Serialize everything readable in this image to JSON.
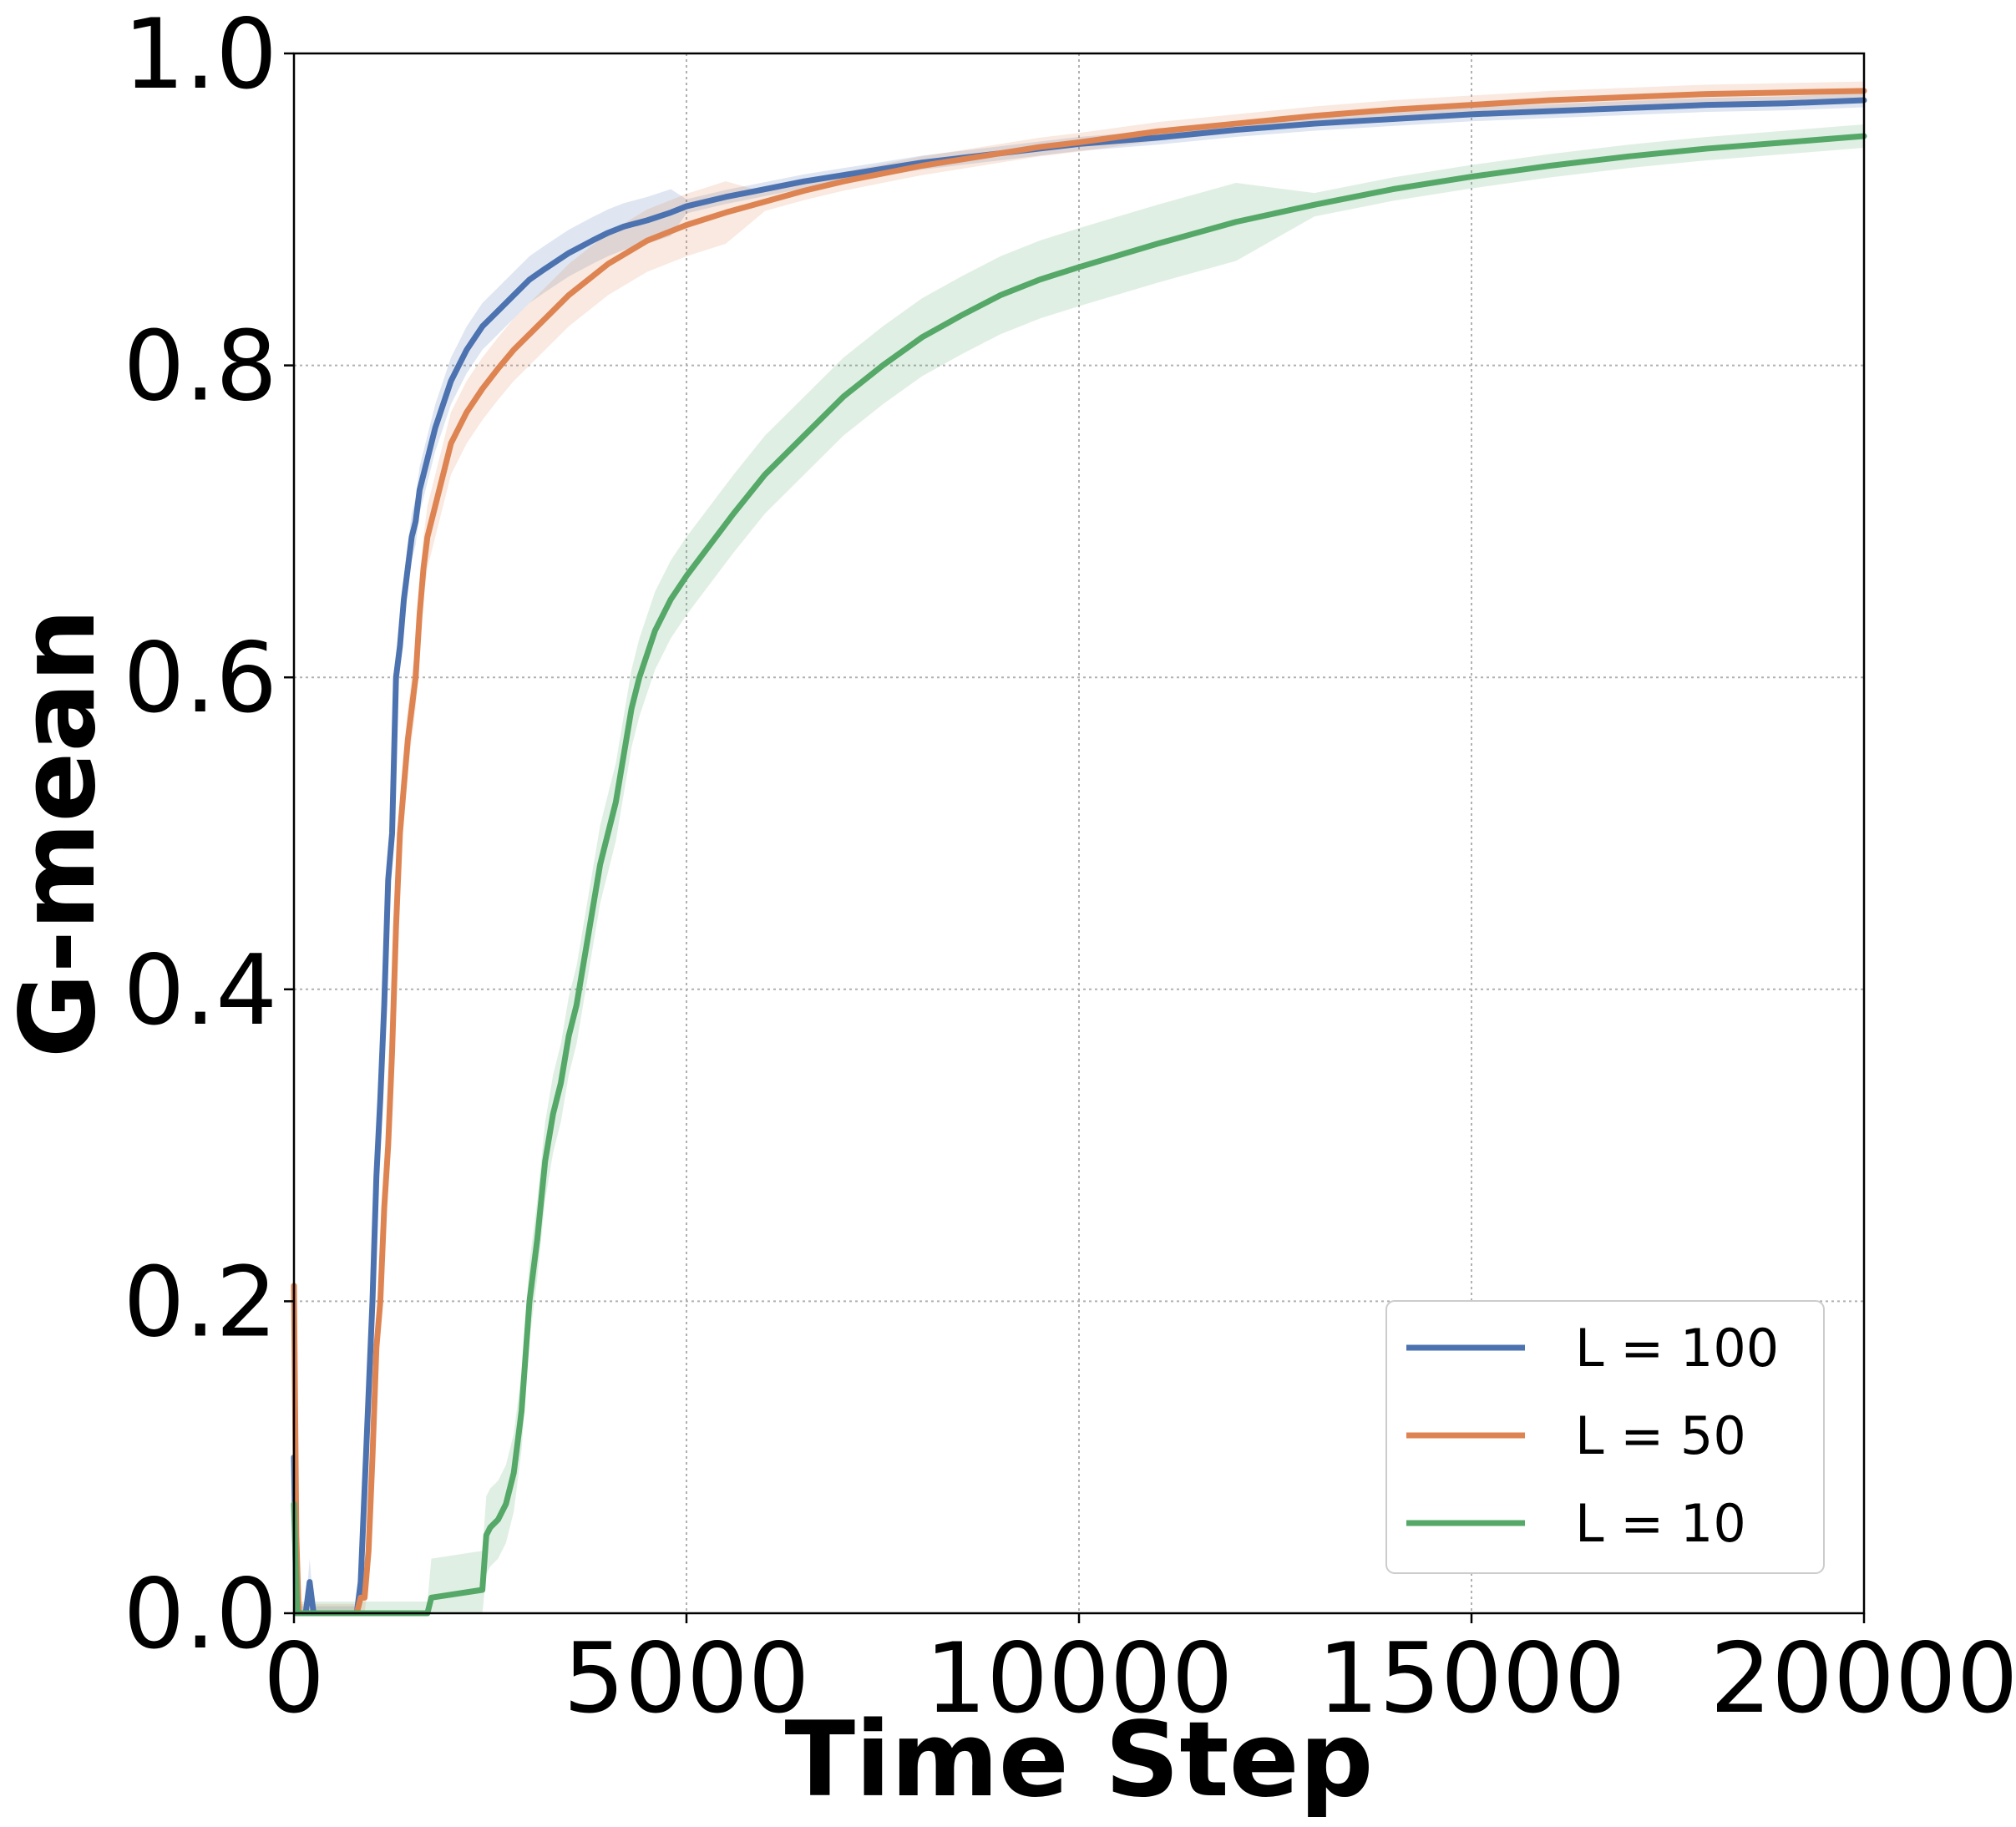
{
  "chart_data": {
    "type": "line",
    "title": "",
    "xlabel": "Time Step",
    "ylabel": "G-mean",
    "xlim": [
      0,
      20000
    ],
    "ylim": [
      0.0,
      1.0
    ],
    "xticks": [
      0,
      5000,
      10000,
      15000,
      20000
    ],
    "xtick_labels": [
      "0",
      "5000",
      "10000",
      "15000",
      "20000"
    ],
    "yticks": [
      0.0,
      0.2,
      0.4,
      0.6,
      0.8,
      1.0
    ],
    "ytick_labels": [
      "0.0",
      "0.2",
      "0.4",
      "0.6",
      "0.8",
      "1.0"
    ],
    "grid": true,
    "legend_position": "lower-right",
    "series": [
      {
        "name": "L = 100",
        "color": "#4c72b0",
        "band": 0.015,
        "x": [
          0,
          30,
          50,
          150,
          200,
          250,
          300,
          800,
          850,
          900,
          950,
          1000,
          1050,
          1100,
          1150,
          1200,
          1250,
          1300,
          1350,
          1400,
          1450,
          1500,
          1550,
          1600,
          1650,
          1700,
          1800,
          1900,
          2000,
          2100,
          2200,
          2400,
          2600,
          2800,
          3000,
          3200,
          3500,
          3800,
          4000,
          4200,
          4500,
          4800,
          5000,
          5500,
          6000,
          6500,
          7000,
          7500,
          8000,
          8500,
          9000,
          9500,
          10000,
          11000,
          12000,
          13000,
          14000,
          15000,
          16000,
          17000,
          18000,
          19000,
          20000
        ],
        "y": [
          0.1,
          0.0,
          0.0,
          0.0,
          0.02,
          0.0,
          0.0,
          0.0,
          0.02,
          0.08,
          0.14,
          0.2,
          0.28,
          0.33,
          0.39,
          0.47,
          0.5,
          0.6,
          0.62,
          0.65,
          0.67,
          0.69,
          0.7,
          0.72,
          0.73,
          0.74,
          0.76,
          0.775,
          0.79,
          0.8,
          0.81,
          0.825,
          0.835,
          0.845,
          0.855,
          0.862,
          0.872,
          0.88,
          0.885,
          0.889,
          0.893,
          0.898,
          0.902,
          0.908,
          0.913,
          0.918,
          0.922,
          0.926,
          0.93,
          0.933,
          0.936,
          0.939,
          0.942,
          0.946,
          0.951,
          0.955,
          0.958,
          0.961,
          0.963,
          0.965,
          0.967,
          0.968,
          0.97
        ]
      },
      {
        "name": "L = 50",
        "color": "#dd8452",
        "band": 0.02,
        "x": [
          0,
          30,
          60,
          800,
          850,
          900,
          950,
          1000,
          1050,
          1100,
          1150,
          1200,
          1250,
          1300,
          1350,
          1400,
          1450,
          1500,
          1550,
          1600,
          1650,
          1700,
          1800,
          1900,
          2000,
          2200,
          2400,
          2600,
          2800,
          3000,
          3200,
          3500,
          3800,
          4000,
          4500,
          5000,
          5500,
          6000,
          6500,
          7000,
          7500,
          8000,
          8500,
          9000,
          9500,
          10000,
          11000,
          12000,
          13000,
          14000,
          15000,
          16000,
          17000,
          18000,
          19000,
          20000
        ],
        "y": [
          0.21,
          0.05,
          0.0,
          0.0,
          0.01,
          0.01,
          0.04,
          0.1,
          0.17,
          0.2,
          0.26,
          0.3,
          0.36,
          0.44,
          0.5,
          0.53,
          0.56,
          0.58,
          0.6,
          0.64,
          0.67,
          0.69,
          0.71,
          0.73,
          0.75,
          0.77,
          0.785,
          0.798,
          0.81,
          0.82,
          0.83,
          0.845,
          0.857,
          0.865,
          0.88,
          0.89,
          0.898,
          0.905,
          0.912,
          0.918,
          0.923,
          0.928,
          0.932,
          0.936,
          0.94,
          0.943,
          0.95,
          0.955,
          0.96,
          0.964,
          0.967,
          0.97,
          0.972,
          0.974,
          0.975,
          0.976
        ]
      },
      {
        "name": "L = 10",
        "color": "#55a868",
        "band": 0.025,
        "x": [
          0,
          40,
          80,
          1700,
          1750,
          2400,
          2450,
          2500,
          2600,
          2700,
          2800,
          2900,
          3000,
          3100,
          3200,
          3300,
          3400,
          3500,
          3600,
          3700,
          3800,
          3900,
          4000,
          4100,
          4200,
          4300,
          4400,
          4500,
          4600,
          4800,
          5000,
          5300,
          5600,
          6000,
          6500,
          7000,
          7500,
          8000,
          8500,
          9000,
          9500,
          10000,
          11000,
          12000,
          13000,
          14000,
          15000,
          16000,
          17000,
          18000,
          19000,
          20000
        ],
        "y": [
          0.07,
          0.0,
          0.0,
          0.0,
          0.01,
          0.015,
          0.05,
          0.055,
          0.06,
          0.07,
          0.09,
          0.13,
          0.2,
          0.24,
          0.29,
          0.32,
          0.34,
          0.37,
          0.39,
          0.42,
          0.45,
          0.48,
          0.5,
          0.52,
          0.55,
          0.58,
          0.6,
          0.615,
          0.63,
          0.65,
          0.665,
          0.685,
          0.705,
          0.73,
          0.755,
          0.78,
          0.8,
          0.818,
          0.832,
          0.845,
          0.855,
          0.863,
          0.878,
          0.892,
          0.903,
          0.913,
          0.921,
          0.928,
          0.934,
          0.939,
          0.943,
          0.947
        ]
      }
    ]
  }
}
